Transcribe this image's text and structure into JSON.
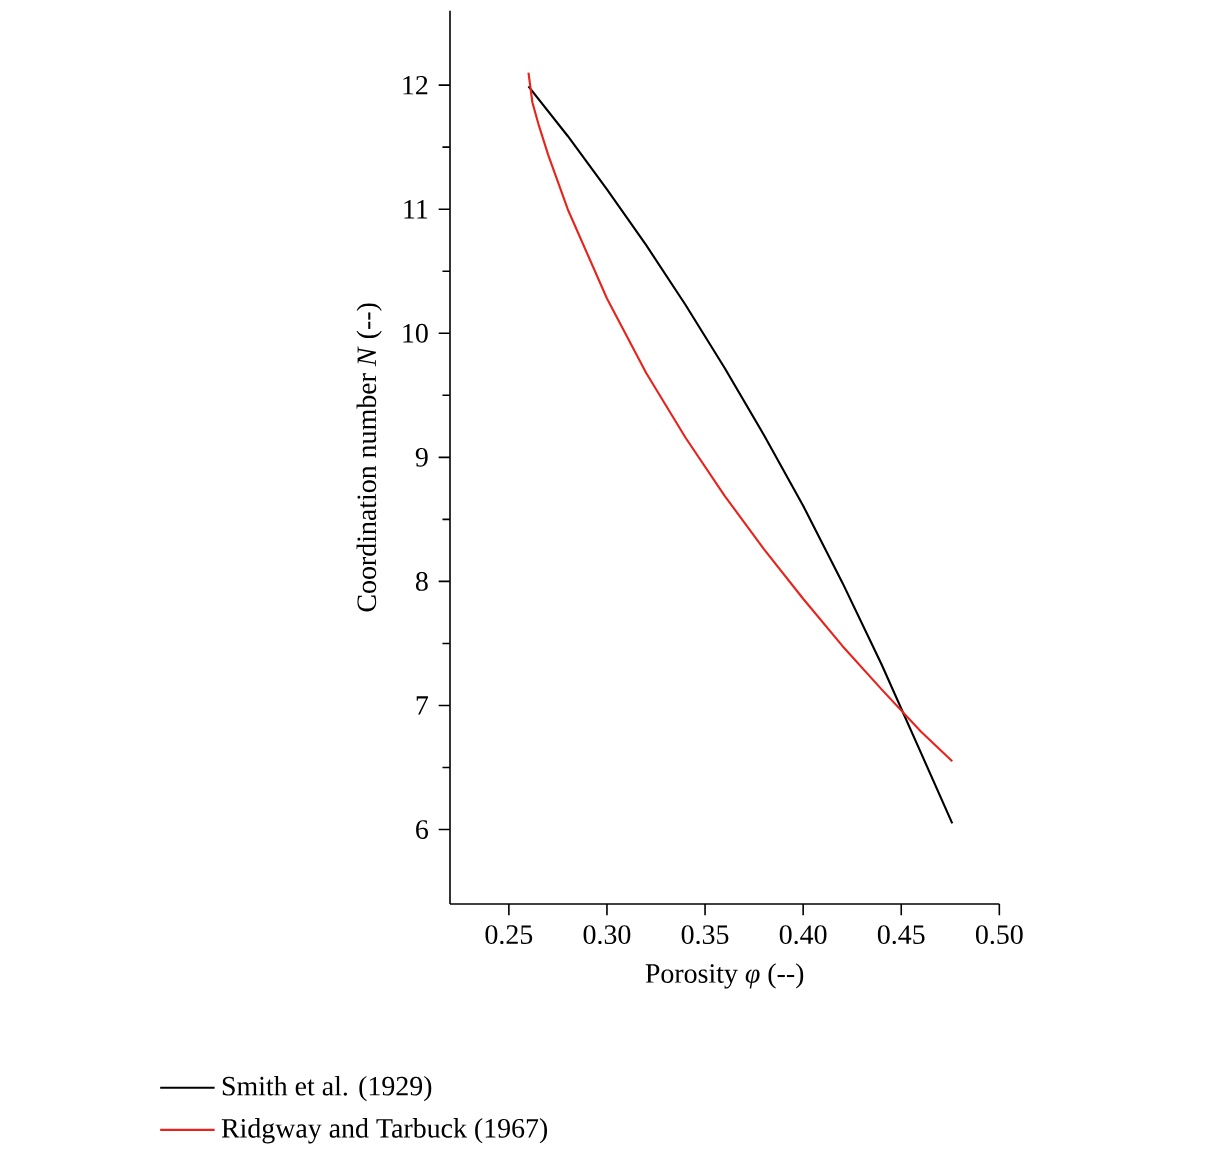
{
  "chart_data": {
    "type": "line",
    "xlabel": "Porosity *φ* (--)",
    "ylabel": "Coordination number *N* (--)",
    "x": [
      0.26,
      0.28,
      0.3,
      0.32,
      0.34,
      0.36,
      0.38,
      0.4,
      0.42,
      0.44,
      0.46,
      0.476
    ],
    "series": [
      {
        "name": "Smith et al. (1929)",
        "color": "#000000",
        "values": [
          11.99,
          11.59,
          11.16,
          10.71,
          10.23,
          9.72,
          9.18,
          8.61,
          7.99,
          7.33,
          6.62,
          6.05
        ]
      },
      {
        "name": "Ridgway and Tarbuck (1967)",
        "color": "#e8231b",
        "x": [
          0.26,
          0.262,
          0.265,
          0.27,
          0.28,
          0.3,
          0.32,
          0.34,
          0.36,
          0.38,
          0.4,
          0.42,
          0.44,
          0.46,
          0.476
        ],
        "values": [
          12.1,
          11.86,
          11.69,
          11.44,
          11.0,
          10.28,
          9.68,
          9.16,
          8.69,
          8.26,
          7.86,
          7.48,
          7.13,
          6.79,
          6.55
        ]
      }
    ],
    "xlim": [
      0.22,
      0.5
    ],
    "ylim": [
      5.4,
      12.6
    ],
    "xticks": [
      0.25,
      {
        "value": 0.3,
        "label": "0.30"
      },
      0.35,
      {
        "value": 0.4,
        "label": "0.40"
      },
      0.45,
      {
        "value": 0.5,
        "label": "0.50"
      }
    ],
    "yticks": [
      6,
      7,
      8,
      9,
      10,
      11,
      12
    ],
    "grid": false,
    "legend": "bottom",
    "marker": "none",
    "line_style": "solid"
  }
}
